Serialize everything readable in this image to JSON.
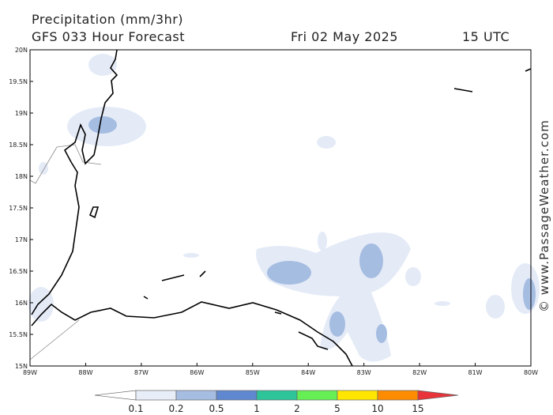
{
  "header": {
    "title": "Precipitation (mm/3hr)",
    "subtitle": "GFS 033 Hour Forecast",
    "date": "Fri 02 May 2025",
    "time": "15 UTC"
  },
  "map": {
    "lat_labels": [
      "20N",
      "19.5N",
      "19N",
      "18.5N",
      "18N",
      "17.5N",
      "17N",
      "16.5N",
      "16N",
      "15.5N",
      "15N"
    ],
    "lon_labels": [
      "89W",
      "88W",
      "87W",
      "86W",
      "85W",
      "84W",
      "83W",
      "82W",
      "81W",
      "80W"
    ]
  },
  "legend": {
    "labels": [
      "0.1",
      "0.2",
      "0.5",
      "1",
      "2",
      "5",
      "10",
      "15"
    ]
  },
  "watermark": "© www.PassageWeather.com"
}
